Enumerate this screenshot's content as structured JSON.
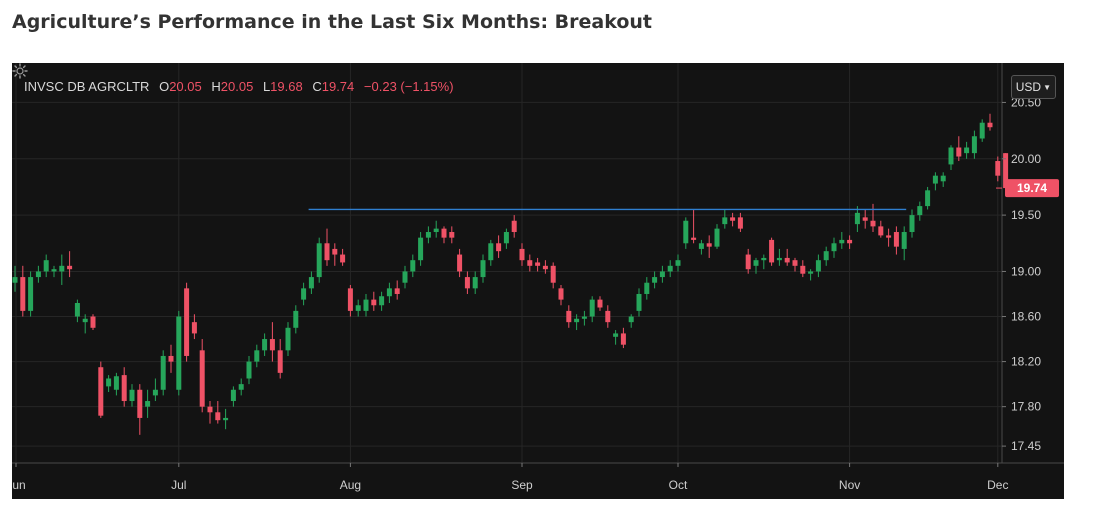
{
  "page_title": "Agriculture’s Performance in the Last Six Months: Breakout",
  "legend": {
    "symbol": "INVSC DB AGRCLTR",
    "open_label": "O",
    "open_value": "20.05",
    "high_label": "H",
    "high_value": "20.05",
    "low_label": "L",
    "low_value": "19.68",
    "close_label": "C",
    "close_value": "19.74",
    "change": "−0.23 (−1.15%)"
  },
  "currency_button": {
    "label": "USD"
  },
  "last_price_label": "19.74",
  "colors": {
    "up": "#26a65b",
    "down": "#ef5266",
    "breakout_line": "#2f7fd0",
    "background": "#131313",
    "grid": "#262626"
  },
  "icons": {
    "currency_dropdown": "chevron-down-icon",
    "settings": "gear-icon"
  },
  "chart_data": {
    "type": "candlestick",
    "y_ticks": [
      "20.50",
      "20.00",
      "19.50",
      "19.00",
      "18.60",
      "18.20",
      "17.80",
      "17.45"
    ],
    "x_ticks": [
      "Jun",
      "Jul",
      "Aug",
      "Sep",
      "Oct",
      "Nov",
      "Dec"
    ],
    "ylim": [
      17.3,
      20.85
    ],
    "grid": true,
    "breakout_level": 19.55,
    "candles": [
      {
        "t": "Jun",
        "o": 18.9,
        "h": 19.05,
        "l": 18.82,
        "c": 18.95
      },
      {
        "t": "Jun",
        "o": 18.95,
        "h": 19.05,
        "l": 18.6,
        "c": 18.65
      },
      {
        "t": "Jun",
        "o": 18.65,
        "h": 19.0,
        "l": 18.6,
        "c": 18.95
      },
      {
        "t": "Jun",
        "o": 18.95,
        "h": 19.05,
        "l": 18.9,
        "c": 19.0
      },
      {
        "t": "Jun",
        "o": 19.0,
        "h": 19.15,
        "l": 18.95,
        "c": 19.1
      },
      {
        "t": "Jun",
        "o": 19.0,
        "h": 19.05,
        "l": 18.95,
        "c": 19.02
      },
      {
        "t": "Jun",
        "o": 19.0,
        "h": 19.15,
        "l": 18.88,
        "c": 19.05
      },
      {
        "t": "Jun",
        "o": 19.05,
        "h": 19.18,
        "l": 18.95,
        "c": 19.02
      },
      {
        "t": "Jun",
        "o": 18.6,
        "h": 18.75,
        "l": 18.55,
        "c": 18.72
      },
      {
        "t": "Jun",
        "o": 18.55,
        "h": 18.62,
        "l": 18.45,
        "c": 18.58
      },
      {
        "t": "Jun",
        "o": 18.6,
        "h": 18.62,
        "l": 18.48,
        "c": 18.5
      },
      {
        "t": "Jun",
        "o": 18.15,
        "h": 18.2,
        "l": 17.7,
        "c": 17.72
      },
      {
        "t": "Jun",
        "o": 17.98,
        "h": 18.08,
        "l": 17.93,
        "c": 18.05
      },
      {
        "t": "Jun",
        "o": 17.95,
        "h": 18.1,
        "l": 17.9,
        "c": 18.07
      },
      {
        "t": "Jun",
        "o": 18.08,
        "h": 18.15,
        "l": 17.8,
        "c": 17.85
      },
      {
        "t": "Jun",
        "o": 17.85,
        "h": 18.0,
        "l": 17.8,
        "c": 17.95
      },
      {
        "t": "Jun",
        "o": 17.95,
        "h": 18.0,
        "l": 17.55,
        "c": 17.7
      },
      {
        "t": "Jun",
        "o": 17.8,
        "h": 17.95,
        "l": 17.7,
        "c": 17.85
      },
      {
        "t": "Jun",
        "o": 17.9,
        "h": 18.05,
        "l": 17.85,
        "c": 17.95
      },
      {
        "t": "Jun",
        "o": 17.95,
        "h": 18.3,
        "l": 17.9,
        "c": 18.25
      },
      {
        "t": "Jun",
        "o": 18.25,
        "h": 18.35,
        "l": 18.1,
        "c": 18.2
      },
      {
        "t": "Jul",
        "o": 17.95,
        "h": 18.65,
        "l": 17.9,
        "c": 18.6
      },
      {
        "t": "Jul",
        "o": 18.85,
        "h": 18.9,
        "l": 18.2,
        "c": 18.25
      },
      {
        "t": "Jul",
        "o": 18.55,
        "h": 18.62,
        "l": 18.4,
        "c": 18.45
      },
      {
        "t": "Jul",
        "o": 18.3,
        "h": 18.4,
        "l": 17.75,
        "c": 17.8
      },
      {
        "t": "Jul",
        "o": 17.8,
        "h": 17.85,
        "l": 17.65,
        "c": 17.75
      },
      {
        "t": "Jul",
        "o": 17.75,
        "h": 17.85,
        "l": 17.65,
        "c": 17.68
      },
      {
        "t": "Jul",
        "o": 17.68,
        "h": 17.78,
        "l": 17.6,
        "c": 17.7
      },
      {
        "t": "Jul",
        "o": 17.85,
        "h": 17.98,
        "l": 17.8,
        "c": 17.95
      },
      {
        "t": "Jul",
        "o": 17.95,
        "h": 18.05,
        "l": 17.9,
        "c": 18.0
      },
      {
        "t": "Jul",
        "o": 18.05,
        "h": 18.25,
        "l": 18.0,
        "c": 18.2
      },
      {
        "t": "Jul",
        "o": 18.2,
        "h": 18.35,
        "l": 18.15,
        "c": 18.3
      },
      {
        "t": "Jul",
        "o": 18.3,
        "h": 18.45,
        "l": 18.25,
        "c": 18.4
      },
      {
        "t": "Jul",
        "o": 18.4,
        "h": 18.55,
        "l": 18.2,
        "c": 18.3
      },
      {
        "t": "Jul",
        "o": 18.3,
        "h": 18.4,
        "l": 18.05,
        "c": 18.1
      },
      {
        "t": "Jul",
        "o": 18.3,
        "h": 18.55,
        "l": 18.25,
        "c": 18.5
      },
      {
        "t": "Jul",
        "o": 18.5,
        "h": 18.7,
        "l": 18.45,
        "c": 18.65
      },
      {
        "t": "Jul",
        "o": 18.75,
        "h": 18.9,
        "l": 18.7,
        "c": 18.85
      },
      {
        "t": "Jul",
        "o": 18.85,
        "h": 19.0,
        "l": 18.8,
        "c": 18.95
      },
      {
        "t": "Jul",
        "o": 18.95,
        "h": 19.3,
        "l": 18.9,
        "c": 19.25
      },
      {
        "t": "Jul",
        "o": 19.25,
        "h": 19.38,
        "l": 19.05,
        "c": 19.1
      },
      {
        "t": "Jul",
        "o": 19.2,
        "h": 19.25,
        "l": 19.05,
        "c": 19.15
      },
      {
        "t": "Jul",
        "o": 19.15,
        "h": 19.2,
        "l": 19.05,
        "c": 19.08
      },
      {
        "t": "Aug",
        "o": 18.85,
        "h": 18.88,
        "l": 18.6,
        "c": 18.65
      },
      {
        "t": "Aug",
        "o": 18.65,
        "h": 18.75,
        "l": 18.6,
        "c": 18.7
      },
      {
        "t": "Aug",
        "o": 18.65,
        "h": 18.8,
        "l": 18.6,
        "c": 18.75
      },
      {
        "t": "Aug",
        "o": 18.75,
        "h": 18.82,
        "l": 18.65,
        "c": 18.7
      },
      {
        "t": "Aug",
        "o": 18.7,
        "h": 18.82,
        "l": 18.65,
        "c": 18.78
      },
      {
        "t": "Aug",
        "o": 18.78,
        "h": 18.9,
        "l": 18.72,
        "c": 18.85
      },
      {
        "t": "Aug",
        "o": 18.85,
        "h": 18.92,
        "l": 18.75,
        "c": 18.8
      },
      {
        "t": "Aug",
        "o": 18.9,
        "h": 19.05,
        "l": 18.85,
        "c": 19.0
      },
      {
        "t": "Aug",
        "o": 19.0,
        "h": 19.15,
        "l": 18.95,
        "c": 19.1
      },
      {
        "t": "Aug",
        "o": 19.1,
        "h": 19.35,
        "l": 19.05,
        "c": 19.3
      },
      {
        "t": "Aug",
        "o": 19.3,
        "h": 19.4,
        "l": 19.25,
        "c": 19.35
      },
      {
        "t": "Aug",
        "o": 19.35,
        "h": 19.45,
        "l": 19.3,
        "c": 19.38
      },
      {
        "t": "Aug",
        "o": 19.38,
        "h": 19.4,
        "l": 19.25,
        "c": 19.3
      },
      {
        "t": "Aug",
        "o": 19.35,
        "h": 19.4,
        "l": 19.25,
        "c": 19.3
      },
      {
        "t": "Aug",
        "o": 19.15,
        "h": 19.2,
        "l": 18.95,
        "c": 19.0
      },
      {
        "t": "Aug",
        "o": 18.95,
        "h": 19.0,
        "l": 18.8,
        "c": 18.85
      },
      {
        "t": "Aug",
        "o": 18.85,
        "h": 19.0,
        "l": 18.8,
        "c": 18.95
      },
      {
        "t": "Aug",
        "o": 18.95,
        "h": 19.15,
        "l": 18.9,
        "c": 19.1
      },
      {
        "t": "Aug",
        "o": 19.1,
        "h": 19.28,
        "l": 19.05,
        "c": 19.25
      },
      {
        "t": "Aug",
        "o": 19.25,
        "h": 19.32,
        "l": 19.12,
        "c": 19.18
      },
      {
        "t": "Aug",
        "o": 19.25,
        "h": 19.38,
        "l": 19.2,
        "c": 19.35
      },
      {
        "t": "Aug",
        "o": 19.45,
        "h": 19.5,
        "l": 19.3,
        "c": 19.35
      },
      {
        "t": "Sep",
        "o": 19.2,
        "h": 19.25,
        "l": 19.05,
        "c": 19.1
      },
      {
        "t": "Sep",
        "o": 19.1,
        "h": 19.15,
        "l": 19.0,
        "c": 19.05
      },
      {
        "t": "Sep",
        "o": 19.08,
        "h": 19.12,
        "l": 19.0,
        "c": 19.05
      },
      {
        "t": "Sep",
        "o": 19.05,
        "h": 19.1,
        "l": 18.98,
        "c": 19.02
      },
      {
        "t": "Sep",
        "o": 19.05,
        "h": 19.08,
        "l": 18.85,
        "c": 18.9
      },
      {
        "t": "Sep",
        "o": 18.85,
        "h": 18.88,
        "l": 18.7,
        "c": 18.75
      },
      {
        "t": "Sep",
        "o": 18.65,
        "h": 18.7,
        "l": 18.5,
        "c": 18.55
      },
      {
        "t": "Sep",
        "o": 18.55,
        "h": 18.62,
        "l": 18.48,
        "c": 18.58
      },
      {
        "t": "Sep",
        "o": 18.58,
        "h": 18.65,
        "l": 18.52,
        "c": 18.6
      },
      {
        "t": "Sep",
        "o": 18.6,
        "h": 18.78,
        "l": 18.55,
        "c": 18.75
      },
      {
        "t": "Sep",
        "o": 18.75,
        "h": 18.78,
        "l": 18.65,
        "c": 18.68
      },
      {
        "t": "Sep",
        "o": 18.65,
        "h": 18.7,
        "l": 18.5,
        "c": 18.55
      },
      {
        "t": "Sep",
        "o": 18.42,
        "h": 18.48,
        "l": 18.35,
        "c": 18.45
      },
      {
        "t": "Sep",
        "o": 18.45,
        "h": 18.5,
        "l": 18.32,
        "c": 18.35
      },
      {
        "t": "Sep",
        "o": 18.55,
        "h": 18.62,
        "l": 18.5,
        "c": 18.6
      },
      {
        "t": "Sep",
        "o": 18.65,
        "h": 18.85,
        "l": 18.6,
        "c": 18.8
      },
      {
        "t": "Sep",
        "o": 18.8,
        "h": 18.95,
        "l": 18.75,
        "c": 18.9
      },
      {
        "t": "Sep",
        "o": 18.9,
        "h": 19.0,
        "l": 18.85,
        "c": 18.95
      },
      {
        "t": "Sep",
        "o": 18.95,
        "h": 19.05,
        "l": 18.9,
        "c": 19.0
      },
      {
        "t": "Sep",
        "o": 19.0,
        "h": 19.1,
        "l": 18.95,
        "c": 19.05
      },
      {
        "t": "Oct",
        "o": 19.05,
        "h": 19.15,
        "l": 19.0,
        "c": 19.1
      },
      {
        "t": "Oct",
        "o": 19.25,
        "h": 19.48,
        "l": 19.2,
        "c": 19.45
      },
      {
        "t": "Oct",
        "o": 19.3,
        "h": 19.55,
        "l": 19.25,
        "c": 19.28
      },
      {
        "t": "Oct",
        "o": 19.2,
        "h": 19.28,
        "l": 19.15,
        "c": 19.25
      },
      {
        "t": "Oct",
        "o": 19.25,
        "h": 19.32,
        "l": 19.12,
        "c": 19.22
      },
      {
        "t": "Oct",
        "o": 19.22,
        "h": 19.42,
        "l": 19.2,
        "c": 19.38
      },
      {
        "t": "Oct",
        "o": 19.42,
        "h": 19.55,
        "l": 19.38,
        "c": 19.48
      },
      {
        "t": "Oct",
        "o": 19.48,
        "h": 19.52,
        "l": 19.4,
        "c": 19.45
      },
      {
        "t": "Oct",
        "o": 19.48,
        "h": 19.52,
        "l": 19.35,
        "c": 19.38
      },
      {
        "t": "Oct",
        "o": 19.15,
        "h": 19.2,
        "l": 18.98,
        "c": 19.02
      },
      {
        "t": "Oct",
        "o": 19.05,
        "h": 19.12,
        "l": 18.98,
        "c": 19.1
      },
      {
        "t": "Oct",
        "o": 19.1,
        "h": 19.15,
        "l": 19.02,
        "c": 19.12
      },
      {
        "t": "Oct",
        "o": 19.28,
        "h": 19.3,
        "l": 19.05,
        "c": 19.08
      },
      {
        "t": "Oct",
        "o": 19.1,
        "h": 19.2,
        "l": 19.05,
        "c": 19.12
      },
      {
        "t": "Oct",
        "o": 19.12,
        "h": 19.2,
        "l": 19.05,
        "c": 19.08
      },
      {
        "t": "Oct",
        "o": 19.1,
        "h": 19.12,
        "l": 19.0,
        "c": 19.05
      },
      {
        "t": "Oct",
        "o": 19.05,
        "h": 19.1,
        "l": 18.95,
        "c": 18.98
      },
      {
        "t": "Oct",
        "o": 18.98,
        "h": 19.02,
        "l": 18.92,
        "c": 19.0
      },
      {
        "t": "Oct",
        "o": 19.0,
        "h": 19.15,
        "l": 18.95,
        "c": 19.1
      },
      {
        "t": "Oct",
        "o": 19.1,
        "h": 19.22,
        "l": 19.05,
        "c": 19.18
      },
      {
        "t": "Oct",
        "o": 19.18,
        "h": 19.3,
        "l": 19.12,
        "c": 19.25
      },
      {
        "t": "Oct",
        "o": 19.25,
        "h": 19.35,
        "l": 19.2,
        "c": 19.28
      },
      {
        "t": "Nov",
        "o": 19.28,
        "h": 19.32,
        "l": 19.2,
        "c": 19.25
      },
      {
        "t": "Nov",
        "o": 19.42,
        "h": 19.58,
        "l": 19.35,
        "c": 19.52
      },
      {
        "t": "Nov",
        "o": 19.48,
        "h": 19.55,
        "l": 19.38,
        "c": 19.45
      },
      {
        "t": "Nov",
        "o": 19.45,
        "h": 19.6,
        "l": 19.35,
        "c": 19.4
      },
      {
        "t": "Nov",
        "o": 19.4,
        "h": 19.45,
        "l": 19.3,
        "c": 19.32
      },
      {
        "t": "Nov",
        "o": 19.32,
        "h": 19.38,
        "l": 19.22,
        "c": 19.3
      },
      {
        "t": "Nov",
        "o": 19.35,
        "h": 19.4,
        "l": 19.15,
        "c": 19.22
      },
      {
        "t": "Nov",
        "o": 19.2,
        "h": 19.4,
        "l": 19.1,
        "c": 19.35
      },
      {
        "t": "Nov",
        "o": 19.35,
        "h": 19.55,
        "l": 19.3,
        "c": 19.5
      },
      {
        "t": "Nov",
        "o": 19.5,
        "h": 19.62,
        "l": 19.45,
        "c": 19.58
      },
      {
        "t": "Nov",
        "o": 19.58,
        "h": 19.75,
        "l": 19.55,
        "c": 19.72
      },
      {
        "t": "Nov",
        "o": 19.78,
        "h": 19.88,
        "l": 19.72,
        "c": 19.85
      },
      {
        "t": "Nov",
        "o": 19.8,
        "h": 19.88,
        "l": 19.75,
        "c": 19.85
      },
      {
        "t": "Nov",
        "o": 19.95,
        "h": 20.12,
        "l": 19.9,
        "c": 20.1
      },
      {
        "t": "Nov",
        "o": 20.1,
        "h": 20.2,
        "l": 19.98,
        "c": 20.02
      },
      {
        "t": "Nov",
        "o": 20.05,
        "h": 20.15,
        "l": 20.0,
        "c": 20.1
      },
      {
        "t": "Nov",
        "o": 20.05,
        "h": 20.25,
        "l": 20.0,
        "c": 20.2
      },
      {
        "t": "Nov",
        "o": 20.18,
        "h": 20.35,
        "l": 20.15,
        "c": 20.32
      },
      {
        "t": "Nov",
        "o": 20.32,
        "h": 20.4,
        "l": 20.25,
        "c": 20.28
      },
      {
        "t": "Dec",
        "o": 19.98,
        "h": 20.02,
        "l": 19.8,
        "c": 19.85
      },
      {
        "t": "Dec",
        "o": 20.05,
        "h": 20.05,
        "l": 19.68,
        "c": 19.74
      }
    ]
  }
}
